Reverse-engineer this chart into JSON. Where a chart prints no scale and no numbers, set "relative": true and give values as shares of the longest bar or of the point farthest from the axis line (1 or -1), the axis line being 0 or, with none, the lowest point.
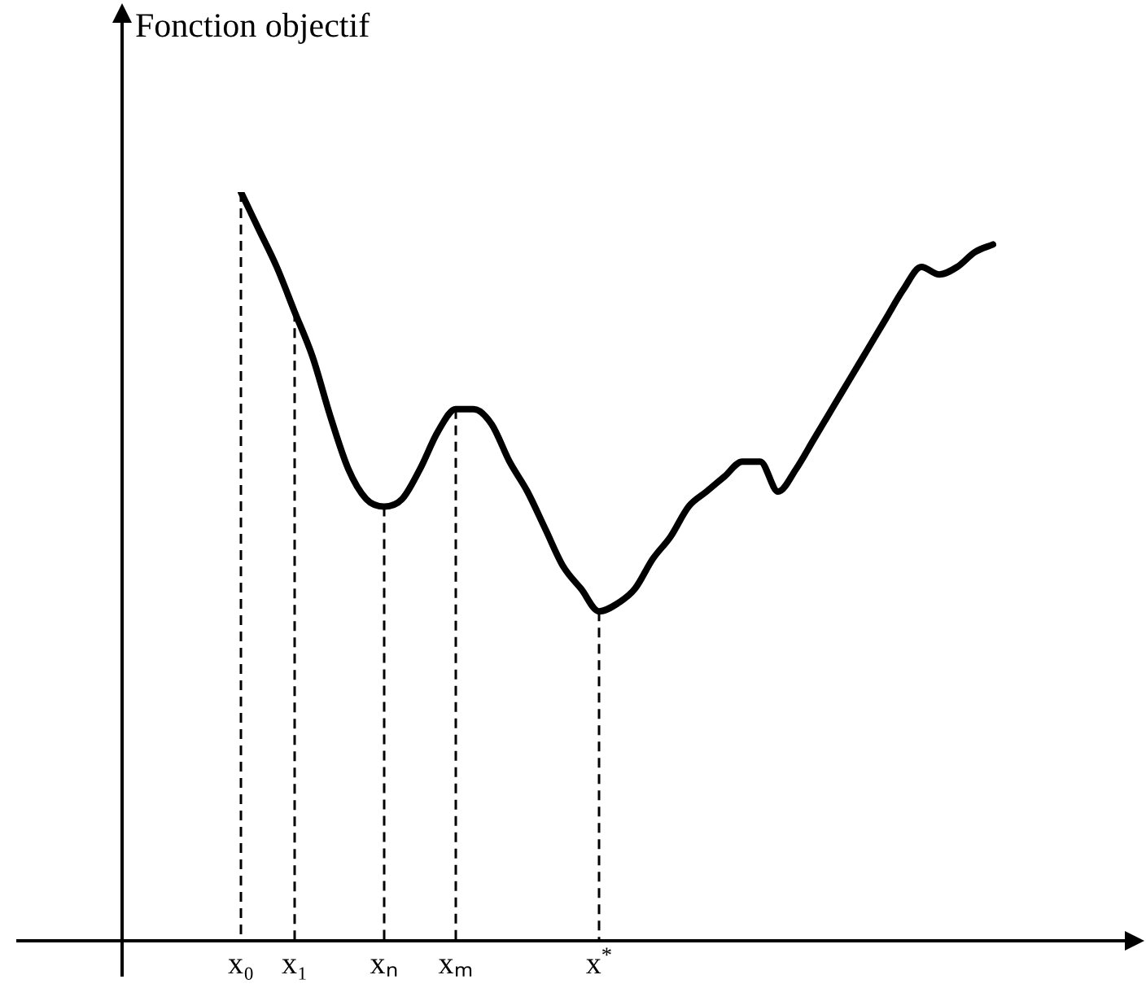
{
  "chart_data": {
    "type": "line",
    "relative": true,
    "ylabel": "Fonction objectif",
    "categories": [
      "x₀",
      null,
      null,
      "x₁",
      null,
      null,
      null,
      null,
      "xₙ",
      null,
      null,
      null,
      "xₘ",
      null,
      null,
      null,
      null,
      null,
      null,
      null,
      "x$^{*}$",
      null,
      null,
      null,
      null,
      null,
      null,
      null,
      null,
      null,
      null,
      null,
      null,
      null,
      null,
      null,
      null,
      null,
      null,
      null,
      null,
      null,
      null
    ],
    "series": [
      {
        "color": "#000000",
        "values": [
          1.0,
          0.95,
          0.9,
          0.84,
          0.78,
          0.7,
          0.63,
          0.59,
          0.58,
          0.59,
          0.63,
          0.68,
          0.71,
          0.71,
          0.69,
          0.64,
          0.6,
          0.55,
          0.5,
          0.47,
          0.44,
          0.45,
          0.47,
          0.51,
          0.54,
          0.58,
          0.6,
          0.62,
          0.64,
          0.64,
          0.6,
          0.63,
          0.67,
          0.71,
          0.75,
          0.79,
          0.83,
          0.87,
          0.9,
          0.89,
          0.9,
          0.92,
          0.93
        ]
      }
    ],
    "ref_lines": [
      {
        "axis": "x",
        "value": "x₀",
        "line_style": "dashed",
        "color": "#000000"
      },
      {
        "axis": "x",
        "value": "x₁",
        "line_style": "dashed",
        "color": "#000000"
      },
      {
        "axis": "x",
        "value": "xₙ",
        "line_style": "dashed",
        "color": "#000000"
      },
      {
        "axis": "x",
        "value": "xₘ",
        "line_style": "dashed",
        "color": "#000000"
      },
      {
        "axis": "x",
        "value": "x$^{*}$",
        "line_style": "dashed",
        "color": "#000000"
      }
    ],
    "legend": false,
    "marker": "none"
  }
}
